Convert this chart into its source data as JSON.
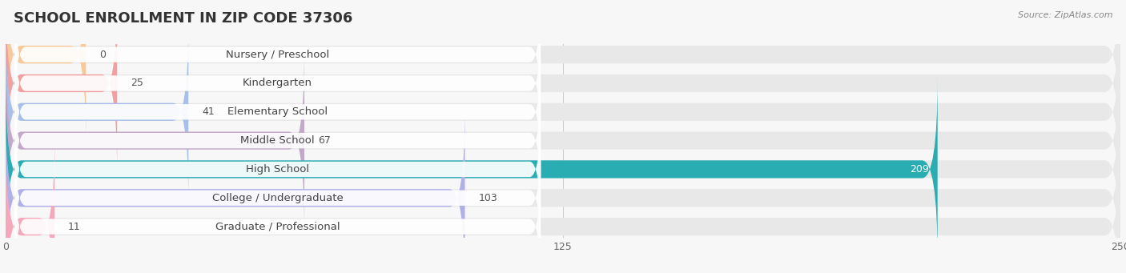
{
  "title": "SCHOOL ENROLLMENT IN ZIP CODE 37306",
  "source": "Source: ZipAtlas.com",
  "categories": [
    "Nursery / Preschool",
    "Kindergarten",
    "Elementary School",
    "Middle School",
    "High School",
    "College / Undergraduate",
    "Graduate / Professional"
  ],
  "values": [
    0,
    25,
    41,
    67,
    209,
    103,
    11
  ],
  "bar_colors": [
    "#f5c99a",
    "#f0a0a0",
    "#a8c0e8",
    "#c4a8cc",
    "#29adb2",
    "#b0b0e8",
    "#f5a8bc"
  ],
  "bar_bg_color": "#e8e8e8",
  "xlim": [
    0,
    250
  ],
  "xticks": [
    0,
    125,
    250
  ],
  "background_color": "#f7f7f7",
  "title_fontsize": 13,
  "label_fontsize": 9.5,
  "value_fontsize": 9,
  "value_label_color_dark": "#555555",
  "value_label_color_light": "#ffffff"
}
